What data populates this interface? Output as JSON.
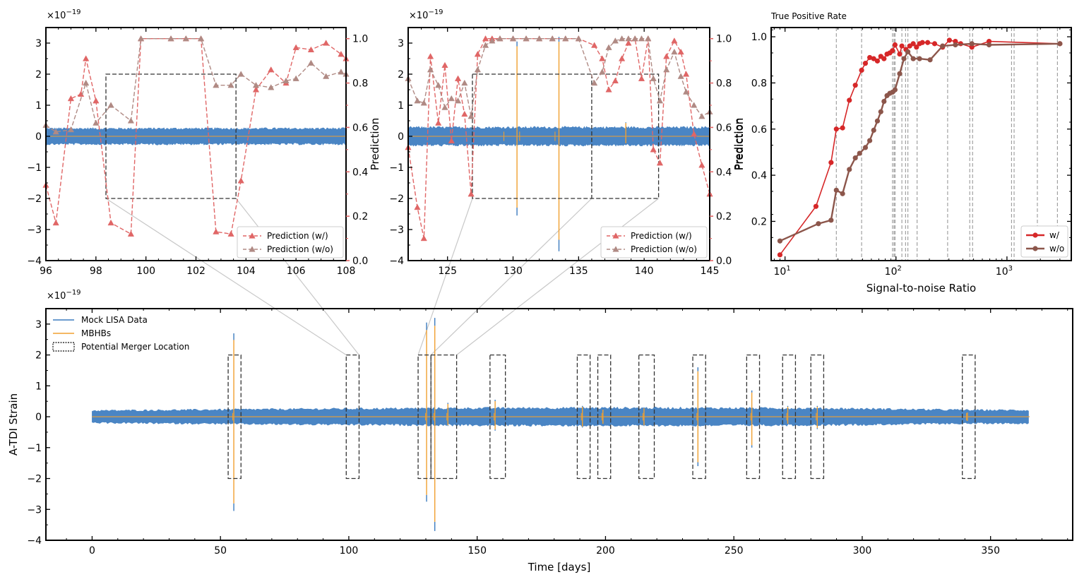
{
  "figure": {
    "exponent_label": "×10",
    "exponent_power": "−19"
  },
  "chart_data": [
    {
      "id": "panel_a",
      "type": "line",
      "xlim": [
        96,
        108
      ],
      "ylim": [
        -4,
        3.5
      ],
      "ylim_right": [
        0,
        1.05
      ],
      "xticks": [
        96,
        98,
        100,
        102,
        104,
        106,
        108
      ],
      "xtick_labels": [
        "96",
        "98",
        "100",
        "102",
        "104",
        "106",
        "108"
      ],
      "yticks": [
        -4,
        -3,
        -2,
        -1,
        0,
        1,
        2,
        3
      ],
      "ytick_labels": [
        "−4",
        "−3",
        "−2",
        "−1",
        "0",
        "1",
        "2",
        "3"
      ],
      "yticks_right": [
        0,
        0.2,
        0.4,
        0.6,
        0.8,
        1.0
      ],
      "ytick_labels_right": [
        "0.0",
        "0.2",
        "0.4",
        "0.6",
        "0.8",
        "1.0"
      ],
      "ylabel_right": "Prediction",
      "strain_amplitude": 0.28,
      "box": {
        "x": [
          98.4,
          103.6
        ],
        "y": [
          -2,
          2
        ]
      },
      "mbhb_spikes": [],
      "series": [
        {
          "name": "Prediction (w/)",
          "color": "#e06666",
          "x": [
            96,
            96.4,
            97,
            97.4,
            97.6,
            98,
            98.6,
            99.4,
            99.8,
            101,
            101.6,
            102.2,
            102.8,
            103.4,
            103.8,
            104.4,
            105,
            105.6,
            106,
            106.6,
            107.2,
            107.8,
            108
          ],
          "y": [
            0.34,
            0.17,
            0.73,
            0.75,
            0.91,
            0.72,
            0.17,
            0.12,
            1.0,
            1.0,
            1.0,
            1.0,
            0.13,
            0.12,
            0.36,
            0.77,
            0.86,
            0.8,
            0.96,
            0.95,
            0.98,
            0.93,
            0.91
          ]
        },
        {
          "name": "Prediction (w/o)",
          "color": "#b08a84",
          "x": [
            96,
            96.4,
            97,
            97.6,
            98,
            98.6,
            99.4,
            99.8,
            101,
            101.6,
            102.2,
            102.8,
            103.4,
            103.8,
            104.4,
            105,
            105.6,
            106,
            106.6,
            107.2,
            107.8,
            108
          ],
          "y": [
            0.61,
            0.58,
            0.59,
            0.8,
            0.62,
            0.7,
            0.63,
            1.0,
            1.0,
            1.0,
            1.0,
            0.79,
            0.79,
            0.84,
            0.79,
            0.78,
            0.81,
            0.82,
            0.89,
            0.83,
            0.85,
            0.84
          ]
        }
      ],
      "legend": [
        "Prediction (w/)",
        "Prediction (w/o)"
      ]
    },
    {
      "id": "panel_b",
      "type": "line",
      "xlim": [
        122,
        145
      ],
      "ylim": [
        -4,
        3.5
      ],
      "ylim_right": [
        0,
        1.05
      ],
      "xticks": [
        125,
        130,
        135,
        140,
        145
      ],
      "xtick_labels": [
        "125",
        "130",
        "135",
        "140",
        "145"
      ],
      "yticks": [
        -4,
        -3,
        -2,
        -1,
        0,
        1,
        2,
        3
      ],
      "ytick_labels": [
        "−4",
        "−3",
        "−2",
        "−1",
        "0",
        "1",
        "2",
        "3"
      ],
      "yticks_right": [
        0,
        0.2,
        0.4,
        0.6,
        0.8,
        1.0
      ],
      "ytick_labels_right": [
        "0.0",
        "0.2",
        "0.4",
        "0.6",
        "0.8",
        "1.0"
      ],
      "ylabel_right": "Prediction",
      "strain_amplitude": 0.32,
      "box": {
        "x": [
          126.9,
          141.1
        ],
        "y": [
          -2,
          2
        ]
      },
      "box_divider": 136,
      "mbhb_spikes": [
        {
          "x": 130.3,
          "top": 3.05,
          "bottom": -2.55
        },
        {
          "x": 133.5,
          "top": 3.2,
          "bottom": -3.7
        },
        {
          "x": 138.6,
          "top": 0.45,
          "bottom": -0.25
        }
      ],
      "series": [
        {
          "name": "Prediction (w/)",
          "color": "#e06666",
          "x": [
            122,
            122.7,
            123.2,
            123.7,
            124.3,
            124.8,
            125.3,
            125.8,
            126.3,
            126.8,
            127.3,
            127.9,
            128.4,
            129,
            130,
            131,
            132,
            133,
            134,
            135,
            136.2,
            136.8,
            137.3,
            137.8,
            138.3,
            138.8,
            139.3,
            139.8,
            140.3,
            140.7,
            141.2,
            141.7,
            142.3,
            142.8,
            143.2,
            143.8,
            144.4,
            145
          ],
          "y": [
            0.51,
            0.24,
            0.1,
            0.92,
            0.62,
            0.88,
            0.54,
            0.82,
            0.66,
            0.3,
            0.93,
            1.0,
            1.0,
            1.0,
            1.0,
            1.0,
            1.0,
            1.0,
            1.0,
            1.0,
            0.97,
            0.91,
            0.77,
            0.81,
            0.91,
            0.98,
            1.0,
            0.82,
            1.0,
            0.5,
            0.44,
            0.92,
            0.99,
            0.94,
            0.84,
            0.57,
            0.43,
            0.3
          ]
        },
        {
          "name": "Prediction (w/o)",
          "color": "#b08a84",
          "x": [
            122,
            122.7,
            123.2,
            123.7,
            124.3,
            124.8,
            125.3,
            125.8,
            126.3,
            126.8,
            127.3,
            127.9,
            128.4,
            129,
            130,
            131,
            132,
            133,
            134,
            135,
            136.2,
            136.8,
            137.3,
            137.8,
            138.3,
            138.8,
            139.3,
            139.8,
            140.3,
            140.7,
            141.2,
            141.7,
            142.3,
            142.8,
            143.2,
            143.8,
            144.4,
            145
          ],
          "y": [
            0.82,
            0.72,
            0.71,
            0.86,
            0.79,
            0.69,
            0.73,
            0.72,
            0.8,
            0.65,
            0.86,
            0.97,
            0.99,
            1.0,
            1.0,
            1.0,
            1.0,
            1.0,
            1.0,
            1.0,
            0.8,
            0.85,
            0.96,
            0.99,
            1.0,
            1.0,
            1.0,
            1.0,
            1.0,
            0.82,
            0.72,
            0.86,
            0.94,
            0.83,
            0.76,
            0.7,
            0.65,
            0.67
          ]
        }
      ],
      "legend": [
        "Prediction (w/)",
        "Prediction (w/o)"
      ]
    },
    {
      "id": "panel_c",
      "type": "line",
      "title": "True Positive Rate",
      "xscale": "log",
      "xlim": [
        7.5,
        3800
      ],
      "ylim": [
        0.03,
        1.04
      ],
      "xticks": [
        10,
        100,
        1000
      ],
      "xtick_labels": [
        "10",
        "10",
        "10"
      ],
      "xtick_powers": [
        "1",
        "2",
        "3"
      ],
      "yticks": [
        0.2,
        0.4,
        0.6,
        0.8,
        1.0
      ],
      "ytick_labels": [
        "0.2",
        "0.4",
        "0.6",
        "0.8",
        "1.0"
      ],
      "xlabel": "Signal-to-noise Ratio",
      "ylabel": "Prediction",
      "vlines": [
        29,
        49,
        93,
        96,
        98,
        113,
        122,
        128,
        155,
        292,
        462,
        490,
        1100,
        1160,
        1880,
        2850
      ],
      "series": [
        {
          "name": "w/",
          "color": "#d62728",
          "x": [
            9,
            19,
            26,
            29,
            33,
            38,
            43,
            49,
            53,
            58,
            63,
            68,
            73,
            78,
            83,
            88,
            93,
            98,
            108,
            113,
            123,
            133,
            143,
            153,
            163,
            173,
            193,
            223,
            263,
            303,
            343,
            383,
            483,
            690,
            3000
          ],
          "y": [
            0.055,
            0.265,
            0.455,
            0.6,
            0.605,
            0.725,
            0.79,
            0.855,
            0.885,
            0.91,
            0.905,
            0.895,
            0.915,
            0.905,
            0.925,
            0.93,
            0.94,
            0.965,
            0.925,
            0.96,
            0.945,
            0.96,
            0.97,
            0.955,
            0.97,
            0.975,
            0.975,
            0.97,
            0.955,
            0.985,
            0.98,
            0.97,
            0.955,
            0.98,
            0.97
          ]
        },
        {
          "name": "w/o",
          "color": "#8c564b",
          "x": [
            9,
            20,
            26,
            29,
            33,
            38,
            43,
            47,
            53,
            58,
            63,
            68,
            73,
            78,
            83,
            88,
            93,
            98,
            108,
            118,
            128,
            143,
            163,
            203,
            263,
            343,
            483,
            690,
            3000
          ],
          "y": [
            0.115,
            0.19,
            0.205,
            0.335,
            0.32,
            0.425,
            0.475,
            0.495,
            0.52,
            0.55,
            0.595,
            0.635,
            0.675,
            0.72,
            0.745,
            0.755,
            0.76,
            0.77,
            0.84,
            0.905,
            0.935,
            0.905,
            0.905,
            0.9,
            0.96,
            0.965,
            0.97,
            0.965,
            0.97
          ]
        }
      ],
      "legend": [
        "w/",
        "w/o"
      ]
    },
    {
      "id": "panel_main",
      "type": "line",
      "xlim": [
        -18,
        382
      ],
      "ylim": [
        -4,
        3.5
      ],
      "xticks": [
        0,
        50,
        100,
        150,
        200,
        250,
        300,
        350
      ],
      "xtick_labels": [
        "0",
        "50",
        "100",
        "150",
        "200",
        "250",
        "300",
        "350"
      ],
      "yticks": [
        -4,
        -3,
        -2,
        -1,
        0,
        1,
        2,
        3
      ],
      "ytick_labels": [
        "−4",
        "−3",
        "−2",
        "−1",
        "0",
        "1",
        "2",
        "3"
      ],
      "xlabel": "Time [days]",
      "ylabel": "A-TDI Strain",
      "data_range": [
        0,
        365.25
      ],
      "boxes": [
        [
          53,
          58
        ],
        [
          99,
          104
        ],
        [
          127,
          132
        ],
        [
          132,
          142
        ],
        [
          155,
          161
        ],
        [
          189,
          194
        ],
        [
          197,
          202
        ],
        [
          213,
          219
        ],
        [
          234,
          239
        ],
        [
          255,
          260
        ],
        [
          269,
          274
        ],
        [
          280,
          285
        ],
        [
          339,
          344
        ]
      ],
      "mbhb_spikes": [
        {
          "x": 55.2,
          "top": 2.7,
          "bottom": -3.05
        },
        {
          "x": 130.3,
          "top": 3.05,
          "bottom": -2.75
        },
        {
          "x": 133.5,
          "top": 3.2,
          "bottom": -3.7
        },
        {
          "x": 138.6,
          "top": 0.45,
          "bottom": -0.3
        },
        {
          "x": 157,
          "top": 0.55,
          "bottom": -0.45
        },
        {
          "x": 191,
          "top": 0.35,
          "bottom": -0.35
        },
        {
          "x": 199,
          "top": 0.25,
          "bottom": -0.25
        },
        {
          "x": 215,
          "top": 0.3,
          "bottom": -0.3
        },
        {
          "x": 236,
          "top": 1.6,
          "bottom": -1.6
        },
        {
          "x": 257,
          "top": 0.85,
          "bottom": -1.0
        },
        {
          "x": 271,
          "top": 0.35,
          "bottom": -0.25
        },
        {
          "x": 282.5,
          "top": 0.35,
          "bottom": -0.4
        },
        {
          "x": 341,
          "top": 0.15,
          "bottom": -0.15
        }
      ],
      "series": [
        {
          "name": "Mock LISA Data",
          "color": "#3b7bbf"
        },
        {
          "name": "MBHBs",
          "color": "#f0a030"
        },
        {
          "name": "Potential Merger Location",
          "color": "#333333"
        }
      ],
      "legend": [
        "Mock LISA Data",
        "MBHBs",
        "Potential Merger Location"
      ]
    }
  ]
}
